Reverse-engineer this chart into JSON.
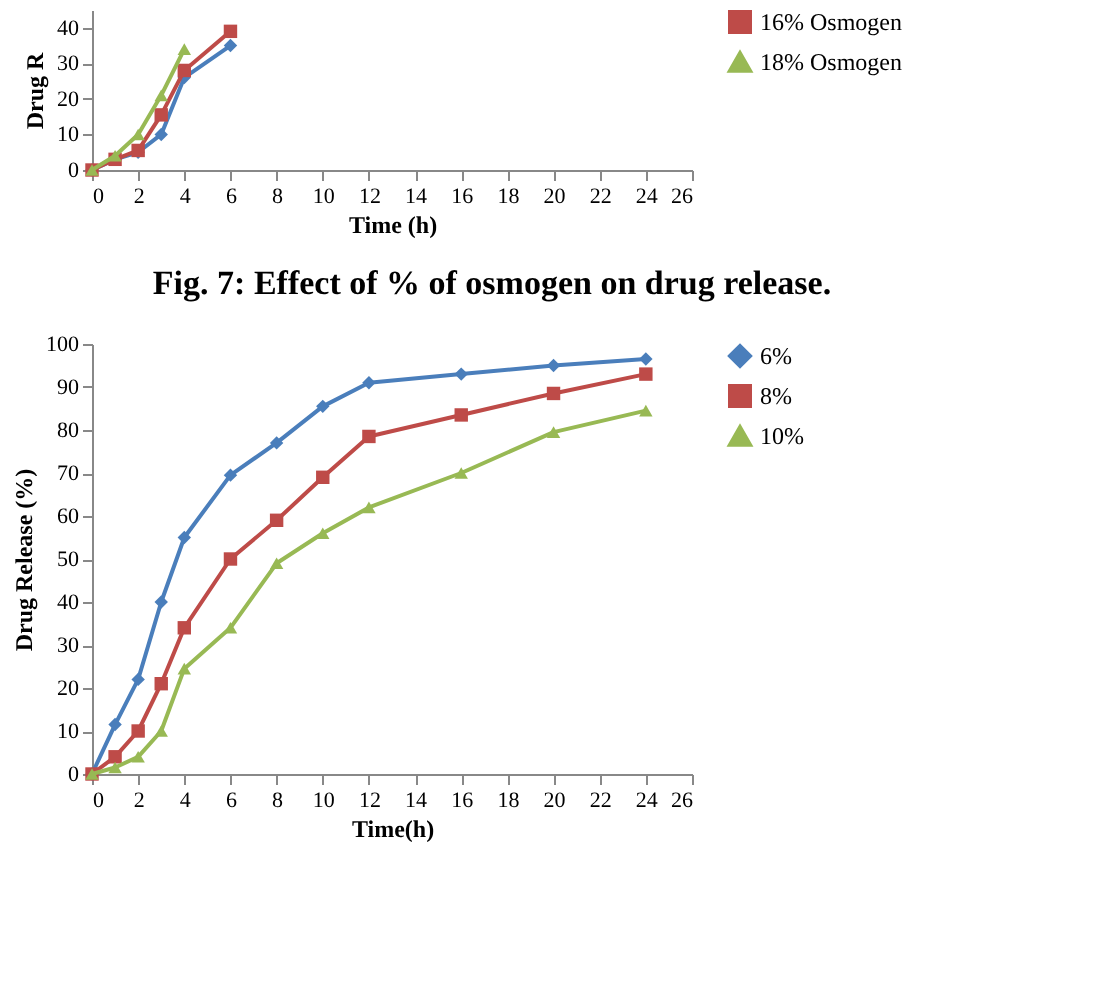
{
  "chart_data": [
    {
      "type": "line",
      "ylabel": "Drug R",
      "xlabel": "Time (h)",
      "x": [
        0,
        1,
        2,
        3,
        4,
        6
      ],
      "xlim": [
        0,
        26
      ],
      "xticks": [
        0,
        2,
        4,
        6,
        8,
        10,
        12,
        14,
        16,
        18,
        20,
        22,
        24,
        26
      ],
      "ylim": [
        0,
        45
      ],
      "yticks": [
        0,
        10,
        20,
        30,
        40
      ],
      "legend": "right",
      "grid": false,
      "line_style": "solid",
      "annotations": [
        "Fig. 7: Effect of % of osmogen on drug release."
      ],
      "series": [
        {
          "color": "#4a7ebb",
          "marker": "diamond",
          "values": [
            0,
            3,
            5,
            10,
            26,
            35
          ]
        },
        {
          "name": "16% Osmogen",
          "color": "#be4b48",
          "marker": "square",
          "values": [
            0,
            3,
            5.5,
            15.5,
            28,
            39
          ]
        },
        {
          "name": "18% Osmogen",
          "color": "#98b954",
          "marker": "triangle",
          "values": [
            0,
            4,
            10,
            21,
            34,
            null
          ]
        }
      ]
    },
    {
      "type": "line",
      "ylabel": "Drug Release (%)",
      "xlabel": "Time(h)",
      "x": [
        0,
        1,
        2,
        3,
        4,
        6,
        8,
        10,
        12,
        16,
        20,
        24
      ],
      "xlim": [
        0,
        26
      ],
      "xticks": [
        0,
        2,
        4,
        6,
        8,
        10,
        12,
        14,
        16,
        18,
        20,
        22,
        24,
        26
      ],
      "ylim": [
        0,
        100
      ],
      "yticks": [
        0,
        10,
        20,
        30,
        40,
        50,
        60,
        70,
        80,
        90,
        100
      ],
      "legend": "right",
      "grid": false,
      "line_style": "solid",
      "series": [
        {
          "name": "6%",
          "color": "#4a7ebb",
          "marker": "diamond",
          "values": [
            0,
            11.5,
            22,
            40,
            55,
            69.5,
            77,
            85.5,
            91,
            93,
            95,
            96.5
          ]
        },
        {
          "name": "8%",
          "color": "#be4b48",
          "marker": "square",
          "values": [
            0,
            4,
            10,
            21,
            34,
            50,
            59,
            69,
            78.5,
            83.5,
            88.5,
            93
          ]
        },
        {
          "name": "10%",
          "color": "#98b954",
          "marker": "triangle",
          "values": [
            0,
            1.5,
            4,
            10,
            24.5,
            34,
            49,
            56,
            62,
            70,
            79.5,
            84.5
          ]
        }
      ]
    }
  ]
}
